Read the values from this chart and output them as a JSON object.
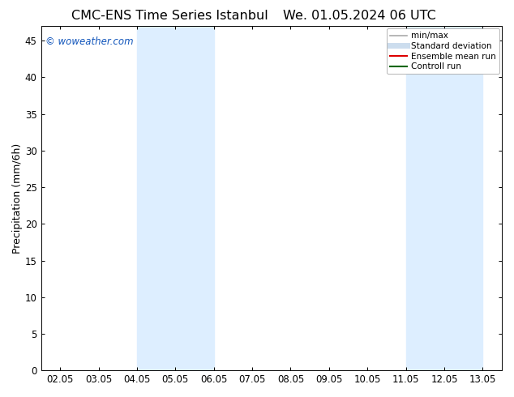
{
  "title": "CMC-ENS Time Series Istanbul",
  "title2": "We. 01.05.2024 06 UTC",
  "ylabel": "Precipitation (mm/6h)",
  "watermark": "© woweather.com",
  "x_tick_labels": [
    "02.05",
    "03.05",
    "04.05",
    "05.05",
    "06.05",
    "07.05",
    "08.05",
    "09.05",
    "10.05",
    "11.05",
    "12.05",
    "13.05"
  ],
  "x_tick_values": [
    1,
    2,
    3,
    4,
    5,
    6,
    7,
    8,
    9,
    10,
    11,
    12
  ],
  "ylim": [
    0,
    47
  ],
  "xlim": [
    0.5,
    12.5
  ],
  "yticks": [
    0,
    5,
    10,
    15,
    20,
    25,
    30,
    35,
    40,
    45
  ],
  "shaded_bands": [
    {
      "x_start": 3.0,
      "x_end": 5.0,
      "color": "#ddeeff"
    },
    {
      "x_start": 10.0,
      "x_end": 12.0,
      "color": "#ddeeff"
    }
  ],
  "legend_items": [
    {
      "label": "min/max",
      "color": "#aaaaaa",
      "lw": 1.2
    },
    {
      "label": "Standard deviation",
      "color": "#ccddee",
      "lw": 5
    },
    {
      "label": "Ensemble mean run",
      "color": "#dd0000",
      "lw": 1.5
    },
    {
      "label": "Controll run",
      "color": "#006600",
      "lw": 1.5
    }
  ],
  "watermark_color": "#1155bb",
  "background_color": "#ffffff",
  "title_fontsize": 11.5,
  "tick_label_fontsize": 8.5,
  "ylabel_fontsize": 9
}
